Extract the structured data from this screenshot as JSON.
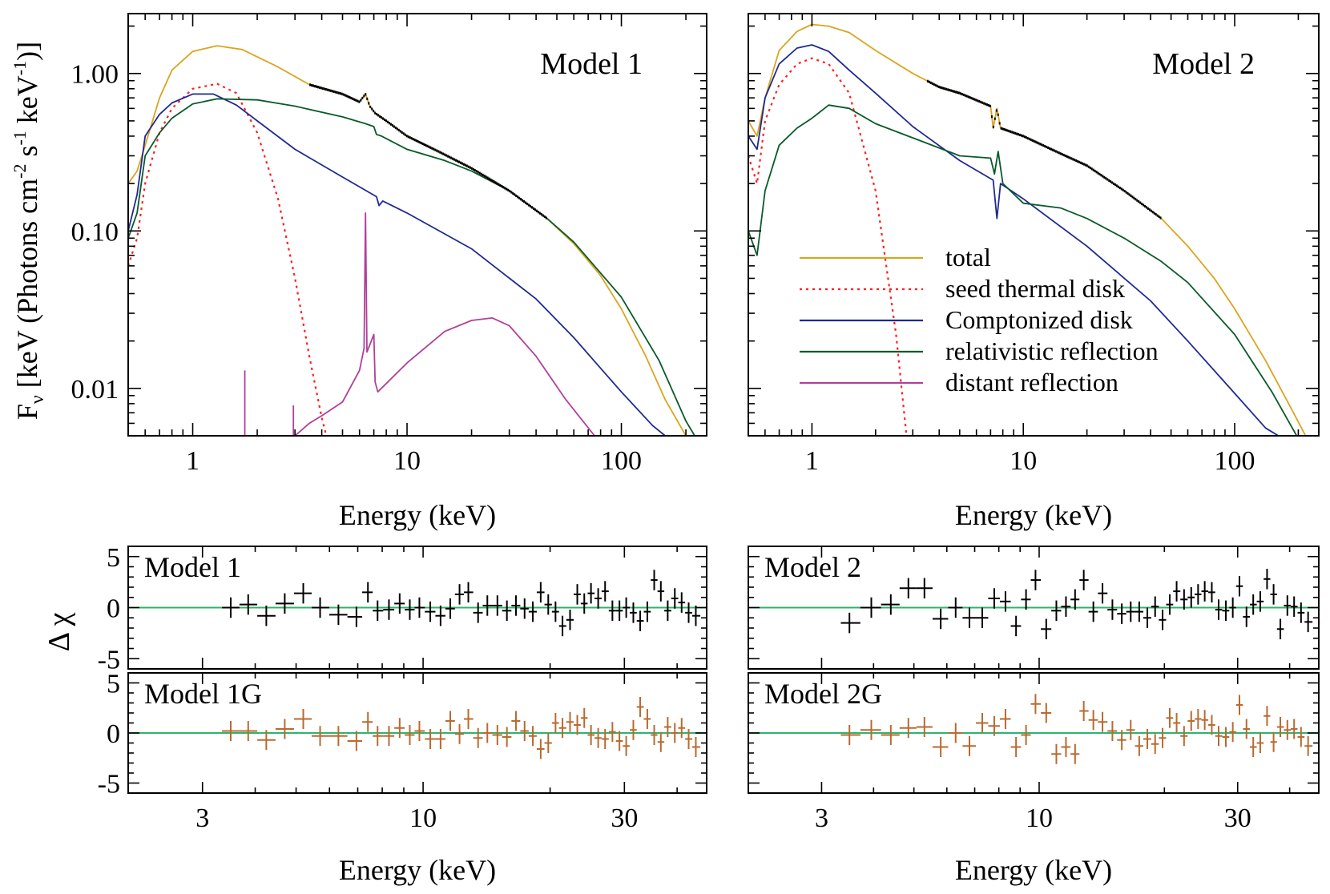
{
  "colors": {
    "total": "#daa520",
    "seed": "#ff2020",
    "comptonized": "#1f2a90",
    "relativistic": "#0a5a2a",
    "distant": "#b0409a",
    "data": "#000000",
    "residual_G": "#b86a30",
    "zero_line": "#2fb36b"
  },
  "legend": {
    "total": "total",
    "seed": "seed thermal disk",
    "comptonized": "Comptonized disk",
    "relativistic": "relativistic reflection",
    "distant": "distant reflection"
  },
  "labels": {
    "top_ylabel_main": "F",
    "top_ylabel_sub": "ν",
    "top_ylabel_rest": " [keV (Photons cm",
    "top_ylabel_sup1": "-2",
    "top_ylabel_s": " s",
    "top_ylabel_sup2": "-1",
    "top_ylabel_kev": " keV",
    "top_ylabel_sup3": "-1",
    "top_ylabel_end": ")]",
    "bottom_ylabel": "Δ χ",
    "xlabel": "Energy (keV)"
  },
  "chart_data": [
    {
      "type": "line",
      "panel": "top-left",
      "title": "Model 1",
      "xlabel": "Energy (keV)",
      "xscale": "log",
      "yscale": "log",
      "xlim": [
        0.5,
        250
      ],
      "ylim": [
        0.005,
        2.4
      ],
      "xticks": [
        "1",
        "10",
        "100"
      ],
      "yticks": [
        "1.00",
        "0.10",
        "0.01"
      ],
      "series": [
        {
          "name": "total",
          "x": [
            0.5,
            0.55,
            0.6,
            0.7,
            0.8,
            1.0,
            1.3,
            1.7,
            2.5,
            3.5,
            5,
            6,
            6.4,
            6.7,
            7.1,
            8,
            10,
            14,
            20,
            30,
            45,
            60,
            80,
            100,
            130,
            160,
            200,
            230
          ],
          "y": [
            0.2,
            0.24,
            0.35,
            0.7,
            1.05,
            1.38,
            1.5,
            1.42,
            1.1,
            0.85,
            0.74,
            0.66,
            0.74,
            0.62,
            0.56,
            0.5,
            0.4,
            0.32,
            0.25,
            0.18,
            0.12,
            0.083,
            0.052,
            0.032,
            0.016,
            0.0085,
            0.005,
            0.004
          ]
        },
        {
          "name": "seed thermal disk",
          "x": [
            0.5,
            0.55,
            0.6,
            0.7,
            0.8,
            1.0,
            1.3,
            1.6,
            2.0,
            2.5,
            3.0,
            3.5,
            4.0,
            4.2
          ],
          "y": [
            0.06,
            0.09,
            0.2,
            0.42,
            0.6,
            0.8,
            0.86,
            0.75,
            0.42,
            0.16,
            0.05,
            0.016,
            0.0065,
            0.005
          ]
        },
        {
          "name": "Comptonized disk",
          "x": [
            0.5,
            0.55,
            0.6,
            0.7,
            0.8,
            1.0,
            1.25,
            1.6,
            2.0,
            3.0,
            5,
            7.2,
            7.4,
            7.7,
            10,
            20,
            40,
            60,
            100,
            140,
            160
          ],
          "y": [
            0.1,
            0.17,
            0.4,
            0.55,
            0.65,
            0.74,
            0.74,
            0.63,
            0.5,
            0.33,
            0.22,
            0.165,
            0.145,
            0.155,
            0.13,
            0.077,
            0.037,
            0.021,
            0.0095,
            0.0058,
            0.005
          ]
        },
        {
          "name": "relativistic reflection",
          "x": [
            0.5,
            0.55,
            0.6,
            0.7,
            0.8,
            1.0,
            1.3,
            2,
            3,
            5,
            6.4,
            7.0,
            7.2,
            7.6,
            10,
            15,
            20,
            30,
            45,
            60,
            100,
            150,
            200,
            220
          ],
          "y": [
            0.09,
            0.13,
            0.3,
            0.42,
            0.52,
            0.64,
            0.69,
            0.68,
            0.62,
            0.53,
            0.48,
            0.46,
            0.41,
            0.4,
            0.33,
            0.28,
            0.24,
            0.18,
            0.12,
            0.085,
            0.038,
            0.015,
            0.0062,
            0.005
          ]
        },
        {
          "name": "distant reflection",
          "x": [
            3.0,
            3.5,
            4.0,
            5,
            6,
            6.3,
            6.4,
            6.5,
            7.0,
            7.1,
            7.3,
            10,
            15,
            20,
            25,
            30,
            40,
            55,
            75
          ],
          "y": [
            0.005,
            0.006,
            0.0067,
            0.0082,
            0.013,
            0.018,
            0.13,
            0.017,
            0.022,
            0.011,
            0.0095,
            0.0145,
            0.023,
            0.027,
            0.028,
            0.025,
            0.016,
            0.0085,
            0.005
          ],
          "lines": [
            {
              "x": 1.75,
              "y": 0.013
            },
            {
              "x": 2.95,
              "y": 0.0078
            }
          ]
        },
        {
          "name": "data",
          "x_range": [
            3.5,
            45
          ]
        }
      ]
    },
    {
      "type": "line",
      "panel": "top-right",
      "title": "Model 2",
      "xlabel": "Energy (keV)",
      "xscale": "log",
      "yscale": "log",
      "xlim": [
        0.5,
        250
      ],
      "ylim": [
        0.005,
        2.4
      ],
      "xticks": [
        "1",
        "10",
        "100"
      ],
      "series": [
        {
          "name": "total",
          "x": [
            0.5,
            0.55,
            0.6,
            0.7,
            0.85,
            1.0,
            1.2,
            1.5,
            2,
            3,
            4,
            5,
            7,
            7.2,
            7.5,
            7.8,
            10,
            15,
            20,
            30,
            45,
            60,
            80,
            100,
            140,
            180,
            220
          ],
          "y": [
            0.5,
            0.4,
            0.7,
            1.4,
            1.85,
            2.05,
            2.0,
            1.82,
            1.4,
            1.0,
            0.82,
            0.75,
            0.62,
            0.45,
            0.6,
            0.45,
            0.4,
            0.31,
            0.26,
            0.18,
            0.12,
            0.08,
            0.05,
            0.032,
            0.015,
            0.008,
            0.0048
          ]
        },
        {
          "name": "seed thermal disk",
          "x": [
            0.5,
            0.55,
            0.6,
            0.7,
            0.85,
            1.0,
            1.2,
            1.5,
            2.0,
            2.5,
            2.8
          ],
          "y": [
            0.3,
            0.2,
            0.5,
            0.85,
            1.15,
            1.25,
            1.15,
            0.75,
            0.18,
            0.022,
            0.005
          ]
        },
        {
          "name": "Comptonized disk",
          "x": [
            0.5,
            0.55,
            0.6,
            0.7,
            0.85,
            1.0,
            1.2,
            1.5,
            2,
            3,
            5,
            7.2,
            7.5,
            7.8,
            10,
            20,
            40,
            60,
            100,
            140,
            165
          ],
          "y": [
            0.4,
            0.33,
            0.7,
            1.15,
            1.45,
            1.52,
            1.38,
            1.05,
            0.75,
            0.46,
            0.28,
            0.21,
            0.12,
            0.2,
            0.16,
            0.08,
            0.036,
            0.02,
            0.0093,
            0.0056,
            0.0049
          ]
        },
        {
          "name": "relativistic reflection",
          "x": [
            0.5,
            0.55,
            0.6,
            0.7,
            0.85,
            1.0,
            1.2,
            1.5,
            2,
            3,
            5,
            7,
            7.3,
            7.6,
            8,
            10,
            15,
            20,
            30,
            45,
            60,
            100,
            150,
            200
          ],
          "y": [
            0.1,
            0.07,
            0.18,
            0.35,
            0.45,
            0.52,
            0.63,
            0.6,
            0.48,
            0.39,
            0.3,
            0.29,
            0.23,
            0.32,
            0.2,
            0.15,
            0.14,
            0.12,
            0.09,
            0.064,
            0.047,
            0.022,
            0.0095,
            0.0048
          ]
        },
        {
          "name": "data",
          "x_range": [
            3.5,
            45
          ]
        }
      ]
    },
    {
      "type": "scatter",
      "panel": "residual-Model-1",
      "title": "Model 1",
      "xscale": "log",
      "xlim": [
        2.0,
        47
      ],
      "ylim": [
        -6,
        6
      ],
      "xticks": [
        "3",
        "10",
        "30"
      ],
      "yticks": [
        "5",
        "0",
        "-5"
      ],
      "x": [
        3.5,
        3.85,
        4.25,
        4.7,
        5.2,
        5.7,
        6.3,
        6.95,
        7.4,
        7.8,
        8.3,
        8.8,
        9.3,
        9.8,
        10.4,
        11.0,
        11.6,
        12.2,
        12.8,
        13.5,
        14.2,
        15.0,
        15.8,
        16.6,
        17.4,
        18.2,
        19.0,
        19.8,
        20.6,
        21.4,
        22.3,
        23.2,
        24.1,
        25.0,
        26.0,
        27.0,
        28.1,
        29.2,
        30.3,
        31.5,
        32.7,
        34.0,
        35.3,
        36.6,
        38.0,
        39.5,
        41.0,
        42.6,
        44.3
      ],
      "y": [
        0,
        0.3,
        -0.8,
        0.4,
        1.4,
        0,
        -0.7,
        -0.9,
        1.5,
        -0.3,
        -0.2,
        0.4,
        -0.2,
        0,
        -0.4,
        -0.8,
        -0.1,
        1.3,
        1.5,
        -0.5,
        0.2,
        0.2,
        -0.3,
        0.2,
        -0.1,
        -0.4,
        1.5,
        0.3,
        -0.4,
        -1.8,
        -1.2,
        1.3,
        0.4,
        1.4,
        0.9,
        1.6,
        -0.3,
        -0.3,
        0.0,
        -0.5,
        -1.3,
        -0.4,
        2.7,
        1.6,
        -0.3,
        0.9,
        0.5,
        -0.5,
        -0.8
      ]
    },
    {
      "type": "scatter",
      "panel": "residual-Model-1G",
      "title": "Model 1G",
      "xscale": "log",
      "xlim": [
        2.0,
        47
      ],
      "ylim": [
        -6,
        6
      ],
      "xticks": [
        "3",
        "10",
        "30"
      ],
      "yticks": [
        "5",
        "0",
        "-5"
      ],
      "x": [
        3.5,
        3.85,
        4.25,
        4.7,
        5.2,
        5.7,
        6.3,
        6.95,
        7.4,
        7.8,
        8.3,
        8.8,
        9.3,
        9.8,
        10.4,
        11.0,
        11.6,
        12.2,
        12.8,
        13.5,
        14.2,
        15.0,
        15.8,
        16.6,
        17.4,
        18.2,
        19.0,
        19.8,
        20.6,
        21.4,
        22.3,
        23.2,
        24.1,
        25.0,
        26.0,
        27.0,
        28.1,
        29.2,
        30.3,
        31.5,
        32.7,
        34.0,
        35.3,
        36.6,
        38.0,
        39.5,
        41.0,
        42.6,
        44.3
      ],
      "y": [
        0.2,
        0.2,
        -0.7,
        0.4,
        1.4,
        -0.3,
        -0.3,
        -0.8,
        1.1,
        -0.3,
        -0.3,
        0.5,
        -0.2,
        0.2,
        -0.6,
        -0.6,
        1.2,
        -0.1,
        1.4,
        -0.5,
        0.0,
        -0.2,
        -0.4,
        1.2,
        0.2,
        -0.3,
        -1.6,
        -1.0,
        1.0,
        0.5,
        1.1,
        0.8,
        1.5,
        -0.2,
        -0.5,
        -0.6,
        0.1,
        -0.8,
        -1.3,
        0.3,
        2.6,
        1.4,
        -0.2,
        -0.9,
        0.6,
        0.0,
        0.5,
        -0.6,
        -1.4
      ]
    },
    {
      "type": "scatter",
      "panel": "residual-Model-2",
      "title": "Model 2",
      "xscale": "log",
      "xlim": [
        2.0,
        47
      ],
      "ylim": [
        -6,
        6
      ],
      "xticks": [
        "3",
        "10",
        "30"
      ],
      "yticks": [
        "5",
        "0",
        "-5"
      ],
      "x": [
        3.5,
        3.95,
        4.4,
        4.85,
        5.3,
        5.8,
        6.3,
        6.8,
        7.3,
        7.8,
        8.3,
        8.8,
        9.3,
        9.8,
        10.4,
        11.0,
        11.6,
        12.2,
        12.8,
        13.5,
        14.2,
        15.0,
        15.8,
        16.6,
        17.4,
        18.2,
        19.0,
        19.8,
        20.6,
        21.4,
        22.3,
        23.2,
        24.1,
        25.0,
        26.0,
        27.0,
        28.1,
        29.2,
        30.3,
        31.5,
        32.7,
        34.0,
        35.3,
        36.6,
        38.0,
        39.5,
        41.0,
        42.6,
        44.3
      ],
      "y": [
        -1.5,
        0,
        0.3,
        1.9,
        1.9,
        -1.1,
        0,
        -1.0,
        -1.0,
        0.9,
        0.6,
        -1.8,
        0.8,
        2.7,
        -2.1,
        -0.3,
        0.1,
        0.8,
        2.7,
        -0.4,
        1.4,
        -0.2,
        -0.6,
        -0.4,
        -0.4,
        -1.0,
        0.1,
        -1.2,
        0.3,
        1.6,
        0.8,
        1.0,
        1.3,
        1.6,
        1.5,
        -0.2,
        -0.3,
        0.0,
        2.1,
        -0.9,
        0.3,
        0.6,
        2.8,
        1.3,
        -2.1,
        0.2,
        0.1,
        -0.5,
        -1.4
      ]
    },
    {
      "type": "scatter",
      "panel": "residual-Model-2G",
      "title": "Model 2G",
      "xscale": "log",
      "xlim": [
        2.0,
        47
      ],
      "ylim": [
        -6,
        6
      ],
      "xticks": [
        "3",
        "10",
        "30"
      ],
      "yticks": [
        "5",
        "0",
        "-5"
      ],
      "x": [
        3.5,
        3.95,
        4.4,
        4.85,
        5.3,
        5.8,
        6.3,
        6.8,
        7.3,
        7.8,
        8.3,
        8.8,
        9.3,
        9.8,
        10.4,
        11.0,
        11.6,
        12.2,
        12.8,
        13.5,
        14.2,
        15.0,
        15.8,
        16.6,
        17.4,
        18.2,
        19.0,
        19.8,
        20.6,
        21.4,
        22.3,
        23.2,
        24.1,
        25.0,
        26.0,
        27.0,
        28.1,
        29.2,
        30.3,
        31.5,
        32.7,
        34.0,
        35.3,
        36.6,
        38.0,
        39.5,
        41.0,
        42.6,
        44.3
      ],
      "y": [
        -0.2,
        0.3,
        -0.2,
        0.5,
        0.6,
        -1.4,
        0.0,
        -1.3,
        1.0,
        0.7,
        1.4,
        -1.4,
        -0.2,
        2.9,
        2.0,
        -2.1,
        -1.4,
        -2.1,
        2.2,
        1.3,
        1.1,
        0.2,
        -0.7,
        0.3,
        -1.3,
        -0.6,
        -1.1,
        -0.5,
        1.5,
        1.0,
        -0.3,
        1.2,
        1.4,
        1.3,
        0.8,
        -0.3,
        -0.4,
        0.1,
        2.8,
        0.4,
        -1.4,
        -1.0,
        1.7,
        -0.9,
        0.6,
        0.3,
        0.4,
        -0.4,
        -1.3
      ]
    }
  ]
}
